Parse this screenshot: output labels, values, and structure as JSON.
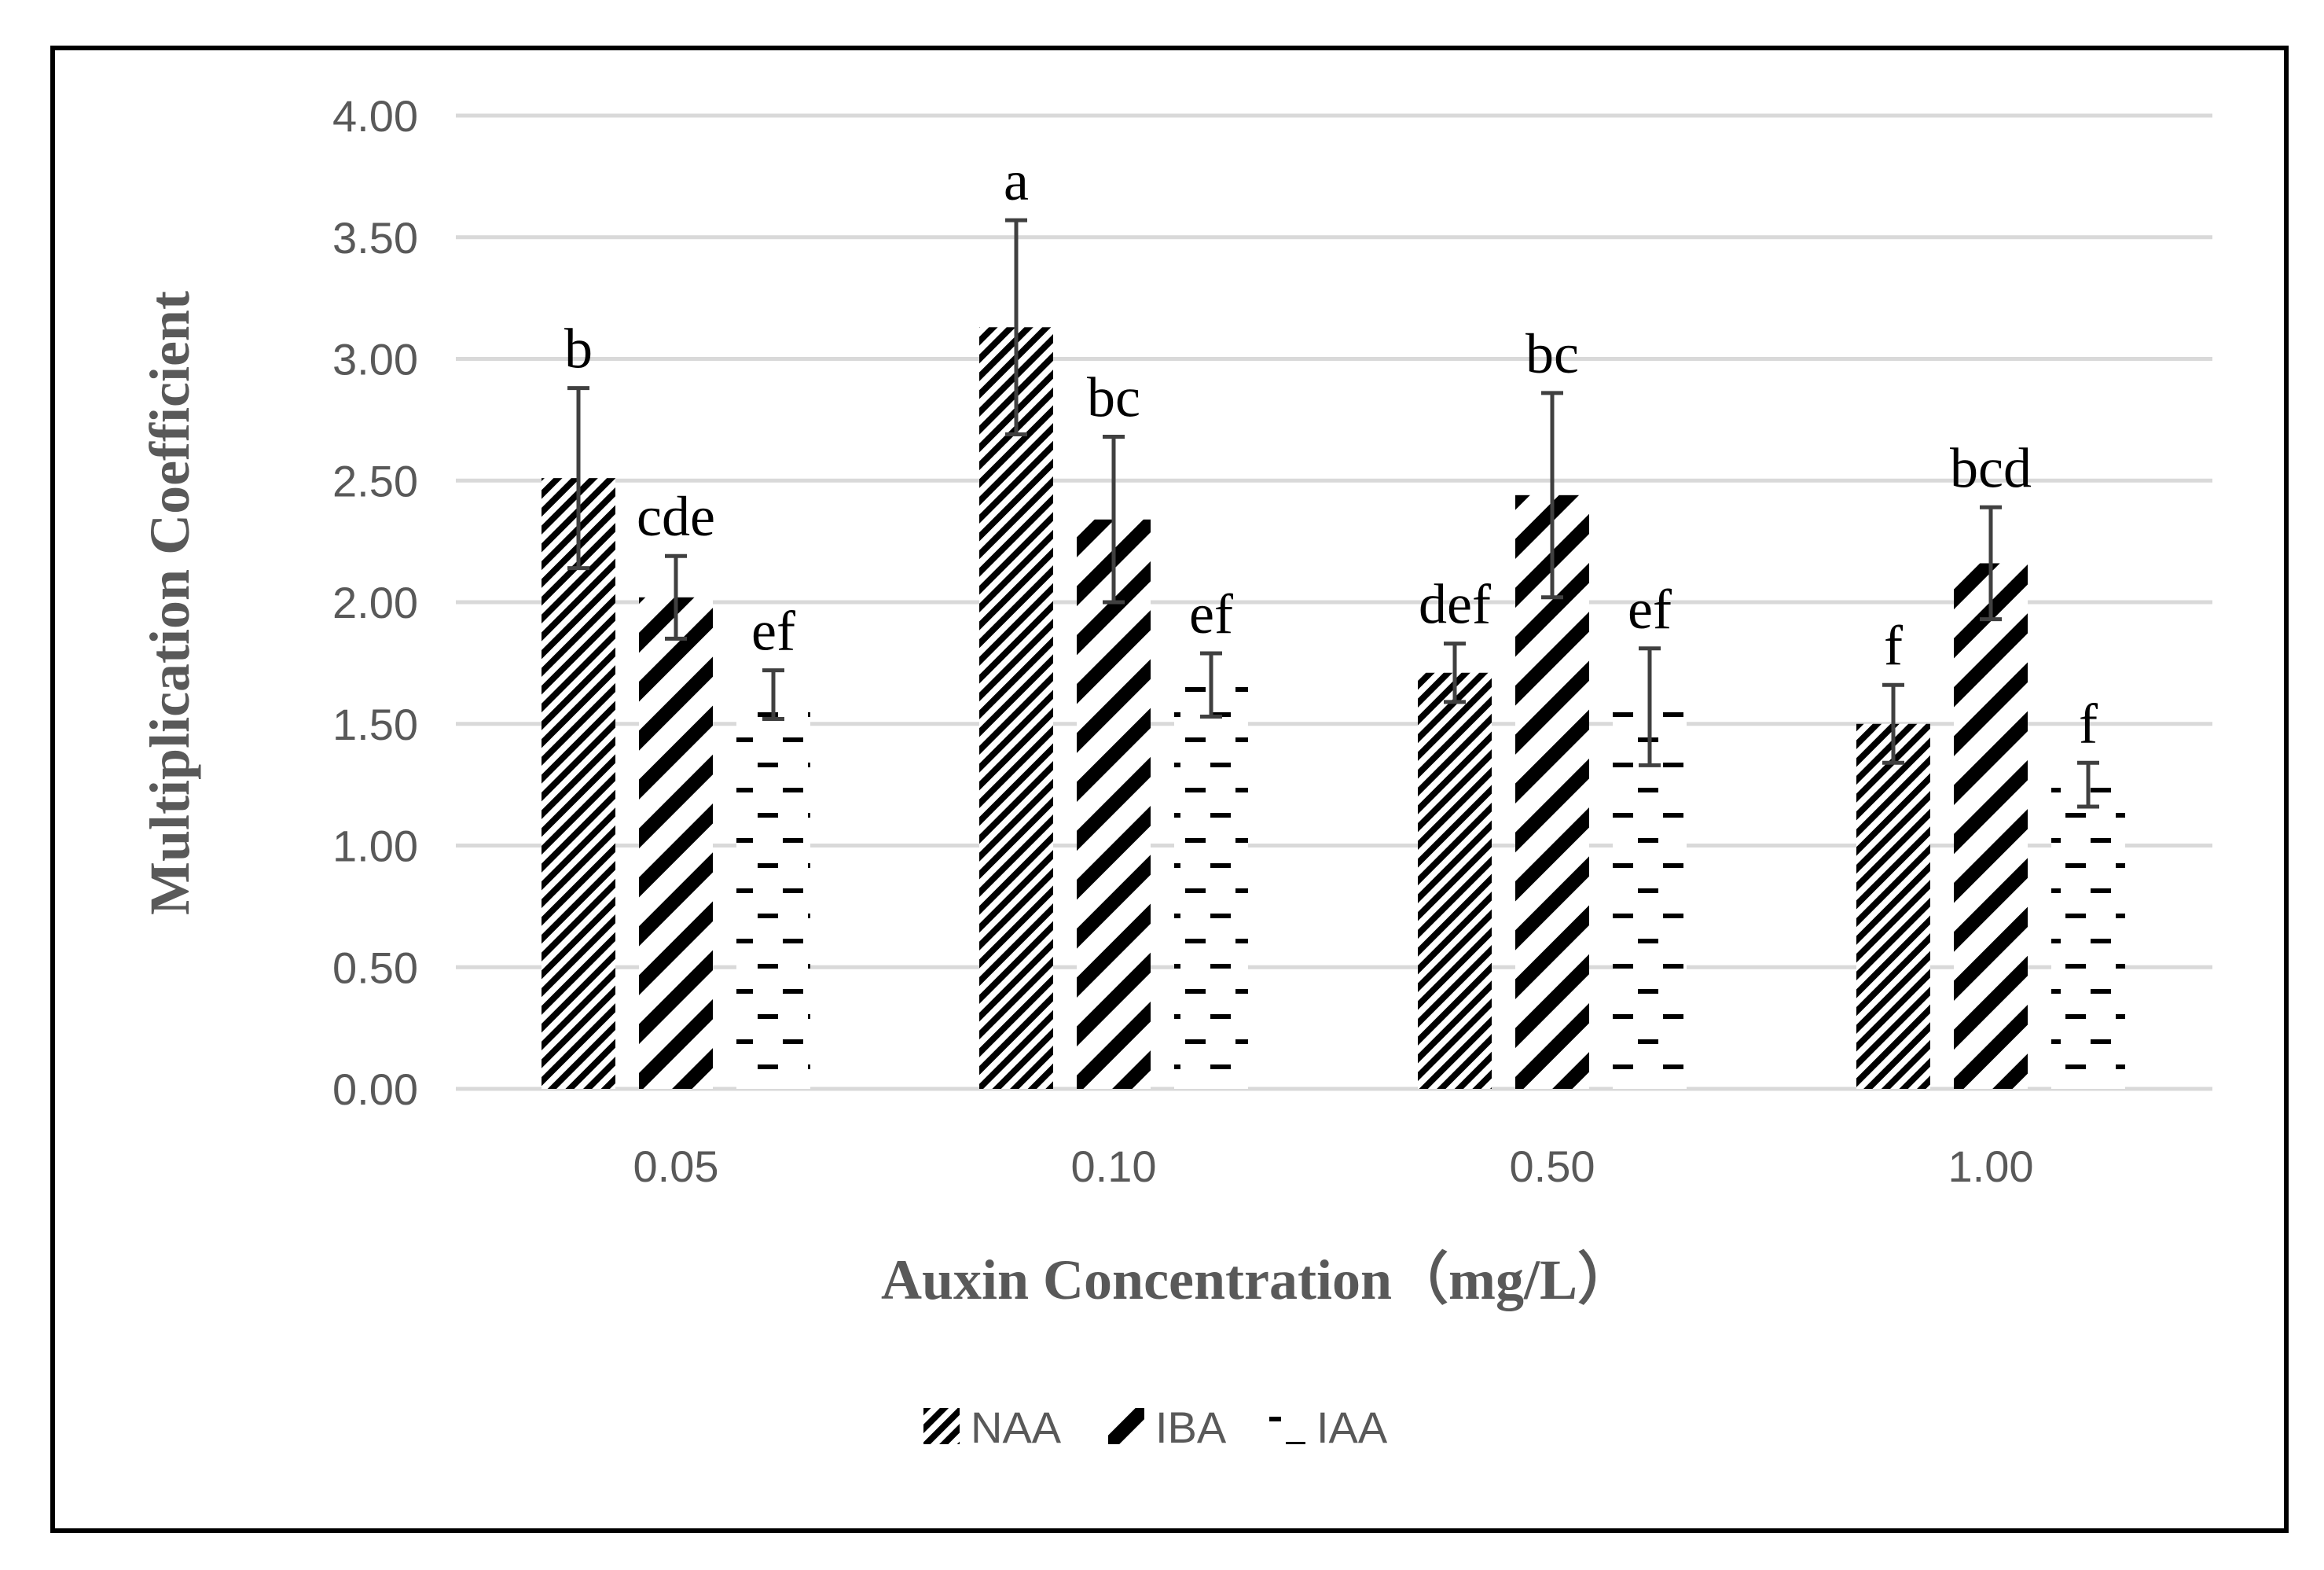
{
  "chart_data": {
    "type": "bar",
    "title": "",
    "xlabel": "Auxin Concentration（mg/L）",
    "ylabel": "Multiplication Coefficient",
    "categories": [
      "0.05",
      "0.10",
      "0.50",
      "1.00"
    ],
    "ylim": [
      0,
      4
    ],
    "yticks": [
      "0.00",
      "0.50",
      "1.00",
      "1.50",
      "2.00",
      "2.50",
      "3.00",
      "3.50",
      "4.00"
    ],
    "grid": true,
    "legend_position": "bottom",
    "series": [
      {
        "name": "NAA",
        "pattern": "fine-diagonal",
        "values": [
          2.51,
          3.13,
          1.71,
          1.5
        ],
        "errors": [
          0.37,
          0.44,
          0.12,
          0.16
        ],
        "letters": [
          "b",
          "a",
          "def",
          "f"
        ]
      },
      {
        "name": "IBA",
        "pattern": "thick-diagonal",
        "values": [
          2.02,
          2.34,
          2.44,
          2.16
        ],
        "errors": [
          0.17,
          0.34,
          0.42,
          0.23
        ],
        "letters": [
          "cde",
          "bc",
          "bc",
          "bcd"
        ]
      },
      {
        "name": "IAA",
        "pattern": "dashes",
        "values": [
          1.62,
          1.66,
          1.57,
          1.25
        ],
        "errors": [
          0.1,
          0.13,
          0.24,
          0.09
        ],
        "letters": [
          "ef",
          "ef",
          "ef",
          "f"
        ]
      }
    ]
  },
  "colors": {
    "bar_ink": "#000000",
    "error_bar": "#404040",
    "gridline": "#d9d9d9",
    "axis_text": "#595959"
  }
}
